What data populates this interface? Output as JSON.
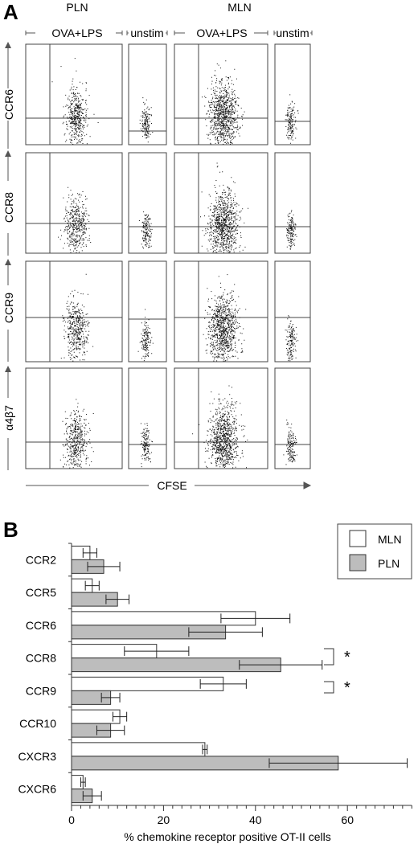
{
  "panel_a": {
    "letter": "A",
    "column_groups": [
      "PLN",
      "MLN"
    ],
    "stim_labels": [
      "OVA+LPS",
      "unstim"
    ],
    "row_labels": [
      "CCR6",
      "CCR8",
      "CCR9",
      "α4β7"
    ],
    "x_axis_label": "CFSE"
  },
  "panel_b": {
    "letter": "B",
    "legend": [
      {
        "label": "MLN",
        "color": "#ffffff"
      },
      {
        "label": "PLN",
        "color": "#bdbdbd"
      }
    ],
    "significance_marks": [
      "*",
      "*"
    ]
  },
  "chart_data": {
    "type": "bar",
    "orientation": "horizontal",
    "categories": [
      "CCR2",
      "CCR5",
      "CCR6",
      "CCR8",
      "CCR9",
      "CCR10",
      "CXCR3",
      "CXCR6"
    ],
    "series": [
      {
        "name": "MLN",
        "values": [
          4,
          4.5,
          40,
          18.5,
          33,
          10.5,
          29,
          2.5
        ],
        "errors": [
          1.5,
          1.5,
          7.5,
          7,
          5,
          1.5,
          0.5,
          0.5
        ],
        "color": "#ffffff"
      },
      {
        "name": "PLN",
        "values": [
          7,
          10,
          33.5,
          45.5,
          8.5,
          8.5,
          58,
          4.5
        ],
        "errors": [
          3.5,
          2.5,
          8,
          9,
          2,
          3,
          15,
          2
        ],
        "color": "#bdbdbd"
      }
    ],
    "significant": [
      "CCR8",
      "CCR9"
    ],
    "xlabel": "% chemokine receptor positive OT-II cells",
    "xticks": [
      0,
      20,
      40,
      60
    ],
    "xlim": [
      0,
      74
    ]
  }
}
